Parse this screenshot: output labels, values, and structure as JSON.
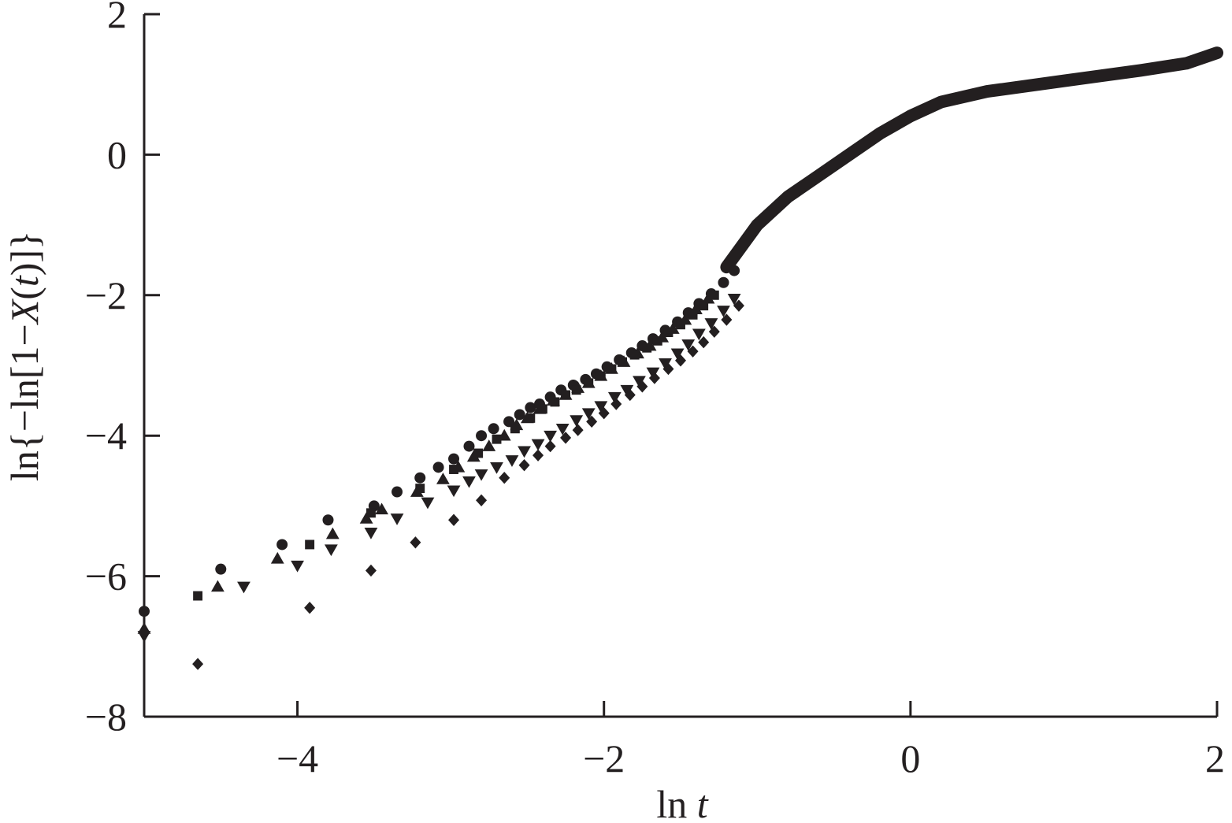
{
  "chart_data": {
    "type": "scatter",
    "title": "",
    "xlabel_parts": {
      "prefix": "ln ",
      "var": "t"
    },
    "ylabel_parts": {
      "a": "ln{−ln[1−",
      "b": "X",
      "c": "(",
      "d": "t",
      "e": ")]}"
    },
    "xlim": [
      -5,
      2
    ],
    "ylim": [
      -8,
      2
    ],
    "xticks": [
      -4,
      -2,
      0,
      2
    ],
    "yticks": [
      -8,
      -6,
      -4,
      -2,
      0,
      2
    ],
    "xtick_labels": [
      "−4",
      "−2",
      "0",
      "2"
    ],
    "ytick_labels": [
      "−8",
      "−6",
      "−4",
      "−2",
      "0",
      "2"
    ],
    "grid": false,
    "legend": false,
    "color": "#231f20",
    "curve_outline": [
      [
        -1.2,
        -1.6
      ],
      [
        -1.0,
        -1.0
      ],
      [
        -0.8,
        -0.6
      ],
      [
        -0.6,
        -0.3
      ],
      [
        -0.4,
        0.0
      ],
      [
        -0.2,
        0.3
      ],
      [
        0.0,
        0.55
      ],
      [
        0.2,
        0.75
      ],
      [
        0.5,
        0.9
      ],
      [
        1.0,
        1.05
      ],
      [
        1.5,
        1.2
      ],
      [
        1.8,
        1.3
      ],
      [
        2.0,
        1.45
      ]
    ],
    "series": [
      {
        "marker": "circle",
        "points": [
          [
            -5.0,
            -6.5
          ],
          [
            -4.5,
            -5.9
          ],
          [
            -4.1,
            -5.55
          ],
          [
            -3.8,
            -5.2
          ],
          [
            -3.5,
            -5.0
          ],
          [
            -3.35,
            -4.8
          ],
          [
            -3.2,
            -4.6
          ],
          [
            -3.08,
            -4.45
          ],
          [
            -2.98,
            -4.33
          ],
          [
            -2.88,
            -4.15
          ],
          [
            -2.8,
            -4.0
          ],
          [
            -2.72,
            -3.9
          ],
          [
            -2.62,
            -3.8
          ],
          [
            -2.55,
            -3.7
          ],
          [
            -2.48,
            -3.6
          ],
          [
            -2.42,
            -3.55
          ],
          [
            -2.35,
            -3.45
          ],
          [
            -2.28,
            -3.35
          ],
          [
            -2.2,
            -3.28
          ],
          [
            -2.12,
            -3.2
          ],
          [
            -2.05,
            -3.12
          ],
          [
            -1.98,
            -3.02
          ],
          [
            -1.9,
            -2.92
          ],
          [
            -1.82,
            -2.82
          ],
          [
            -1.75,
            -2.72
          ],
          [
            -1.68,
            -2.62
          ],
          [
            -1.6,
            -2.5
          ],
          [
            -1.52,
            -2.38
          ],
          [
            -1.45,
            -2.25
          ],
          [
            -1.38,
            -2.12
          ],
          [
            -1.3,
            -1.98
          ],
          [
            -1.22,
            -1.82
          ],
          [
            -1.15,
            -1.65
          ]
        ]
      },
      {
        "marker": "square",
        "points": [
          [
            -4.65,
            -6.28
          ],
          [
            -3.92,
            -5.55
          ],
          [
            -3.52,
            -5.1
          ],
          [
            -3.2,
            -4.75
          ],
          [
            -2.98,
            -4.48
          ],
          [
            -2.82,
            -4.25
          ],
          [
            -2.7,
            -4.05
          ],
          [
            -2.58,
            -3.9
          ],
          [
            -2.48,
            -3.75
          ],
          [
            -2.4,
            -3.62
          ],
          [
            -2.32,
            -3.52
          ],
          [
            -2.25,
            -3.42
          ],
          [
            -2.18,
            -3.35
          ],
          [
            -2.1,
            -3.25
          ],
          [
            -2.02,
            -3.15
          ],
          [
            -1.95,
            -3.05
          ],
          [
            -1.88,
            -2.95
          ],
          [
            -1.8,
            -2.85
          ],
          [
            -1.72,
            -2.75
          ],
          [
            -1.65,
            -2.65
          ],
          [
            -1.58,
            -2.53
          ],
          [
            -1.5,
            -2.42
          ],
          [
            -1.42,
            -2.28
          ],
          [
            -1.35,
            -2.15
          ],
          [
            -1.28,
            -2.0
          ]
        ]
      },
      {
        "marker": "triangle-up",
        "points": [
          [
            -5.0,
            -6.75
          ],
          [
            -4.52,
            -6.15
          ],
          [
            -4.13,
            -5.75
          ],
          [
            -3.77,
            -5.4
          ],
          [
            -3.55,
            -5.18
          ],
          [
            -3.45,
            -5.05
          ],
          [
            -3.22,
            -4.8
          ],
          [
            -3.05,
            -4.62
          ],
          [
            -2.95,
            -4.45
          ],
          [
            -2.85,
            -4.3
          ],
          [
            -2.75,
            -4.15
          ],
          [
            -2.65,
            -4.0
          ],
          [
            -2.57,
            -3.85
          ],
          [
            -2.5,
            -3.75
          ],
          [
            -2.42,
            -3.62
          ],
          [
            -2.33,
            -3.5
          ],
          [
            -2.25,
            -3.42
          ],
          [
            -2.17,
            -3.32
          ],
          [
            -2.1,
            -3.25
          ],
          [
            -2.02,
            -3.15
          ],
          [
            -1.95,
            -3.05
          ],
          [
            -1.87,
            -2.95
          ],
          [
            -1.78,
            -2.83
          ],
          [
            -1.7,
            -2.72
          ],
          [
            -1.62,
            -2.6
          ],
          [
            -1.55,
            -2.48
          ],
          [
            -1.47,
            -2.35
          ],
          [
            -1.4,
            -2.2
          ],
          [
            -1.32,
            -2.05
          ]
        ]
      },
      {
        "marker": "triangle-down",
        "points": [
          [
            -5.0,
            -6.85
          ],
          [
            -4.35,
            -6.15
          ],
          [
            -4.0,
            -5.85
          ],
          [
            -3.78,
            -5.62
          ],
          [
            -3.52,
            -5.38
          ],
          [
            -3.35,
            -5.18
          ],
          [
            -3.15,
            -4.95
          ],
          [
            -2.98,
            -4.78
          ],
          [
            -2.88,
            -4.65
          ],
          [
            -2.8,
            -4.55
          ],
          [
            -2.7,
            -4.45
          ],
          [
            -2.6,
            -4.35
          ],
          [
            -2.52,
            -4.22
          ],
          [
            -2.43,
            -4.12
          ],
          [
            -2.35,
            -4.0
          ],
          [
            -2.27,
            -3.9
          ],
          [
            -2.18,
            -3.78
          ],
          [
            -2.1,
            -3.68
          ],
          [
            -2.02,
            -3.58
          ],
          [
            -1.93,
            -3.45
          ],
          [
            -1.85,
            -3.35
          ],
          [
            -1.77,
            -3.22
          ],
          [
            -1.68,
            -3.1
          ],
          [
            -1.6,
            -2.97
          ],
          [
            -1.52,
            -2.83
          ],
          [
            -1.45,
            -2.7
          ],
          [
            -1.38,
            -2.55
          ],
          [
            -1.3,
            -2.4
          ],
          [
            -1.22,
            -2.22
          ],
          [
            -1.15,
            -2.05
          ]
        ]
      },
      {
        "marker": "diamond",
        "points": [
          [
            -5.0,
            -6.8
          ],
          [
            -4.65,
            -7.25
          ],
          [
            -3.92,
            -6.45
          ],
          [
            -3.52,
            -5.92
          ],
          [
            -3.23,
            -5.52
          ],
          [
            -2.98,
            -5.2
          ],
          [
            -2.8,
            -4.92
          ],
          [
            -2.65,
            -4.6
          ],
          [
            -2.52,
            -4.42
          ],
          [
            -2.43,
            -4.28
          ],
          [
            -2.35,
            -4.15
          ],
          [
            -2.25,
            -4.03
          ],
          [
            -2.17,
            -3.92
          ],
          [
            -2.08,
            -3.8
          ],
          [
            -2.0,
            -3.68
          ],
          [
            -1.92,
            -3.55
          ],
          [
            -1.83,
            -3.42
          ],
          [
            -1.75,
            -3.3
          ],
          [
            -1.67,
            -3.18
          ],
          [
            -1.58,
            -3.05
          ],
          [
            -1.5,
            -2.93
          ],
          [
            -1.42,
            -2.8
          ],
          [
            -1.35,
            -2.67
          ],
          [
            -1.28,
            -2.52
          ],
          [
            -1.2,
            -2.35
          ],
          [
            -1.12,
            -2.15
          ]
        ]
      }
    ]
  }
}
